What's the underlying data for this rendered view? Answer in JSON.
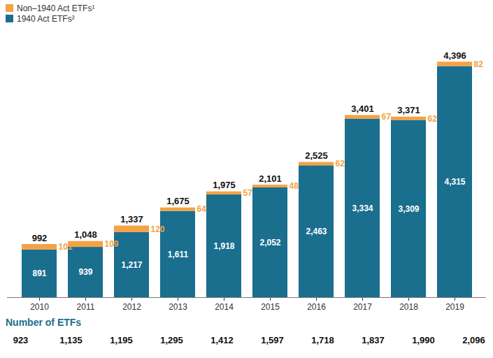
{
  "chart_data": {
    "type": "bar",
    "stacked": true,
    "data_labels": true,
    "tick_labels": "x",
    "legend": "top-left",
    "categories": [
      "2010",
      "2011",
      "2012",
      "2013",
      "2014",
      "2015",
      "2016",
      "2017",
      "2018",
      "2019"
    ],
    "series": [
      {
        "name": "Non–1940 Act ETFs¹",
        "color": "#f5a244",
        "values": [
          101,
          109,
          120,
          64,
          57,
          48,
          62,
          67,
          62,
          82
        ]
      },
      {
        "name": "1940 Act ETFs²",
        "color": "#1a6e8e",
        "values": [
          891,
          939,
          1217,
          1611,
          1918,
          2052,
          2463,
          3334,
          3309,
          4315
        ],
        "value_labels": [
          "891",
          "939",
          "1,217",
          "1,611",
          "1,918",
          "2,052",
          "2,463",
          "3,334",
          "3,309",
          "4,315"
        ]
      }
    ],
    "totals": [
      992,
      1048,
      1337,
      1675,
      1975,
      2101,
      2525,
      3401,
      3371,
      4396
    ],
    "total_labels": [
      "992",
      "1,048",
      "1,337",
      "1,675",
      "1,975",
      "2,101",
      "2,525",
      "3,401",
      "3,371",
      "4,396"
    ],
    "ylim": [
      0,
      4700
    ],
    "yticks": [],
    "etf_count": {
      "title": "Number of ETFs",
      "values": [
        923,
        1135,
        1195,
        1295,
        1412,
        1597,
        1718,
        1837,
        1990,
        2096
      ],
      "value_labels": [
        "923",
        "1,135",
        "1,195",
        "1,295",
        "1,412",
        "1,597",
        "1,718",
        "1,837",
        "1,990",
        "2,096"
      ]
    }
  }
}
